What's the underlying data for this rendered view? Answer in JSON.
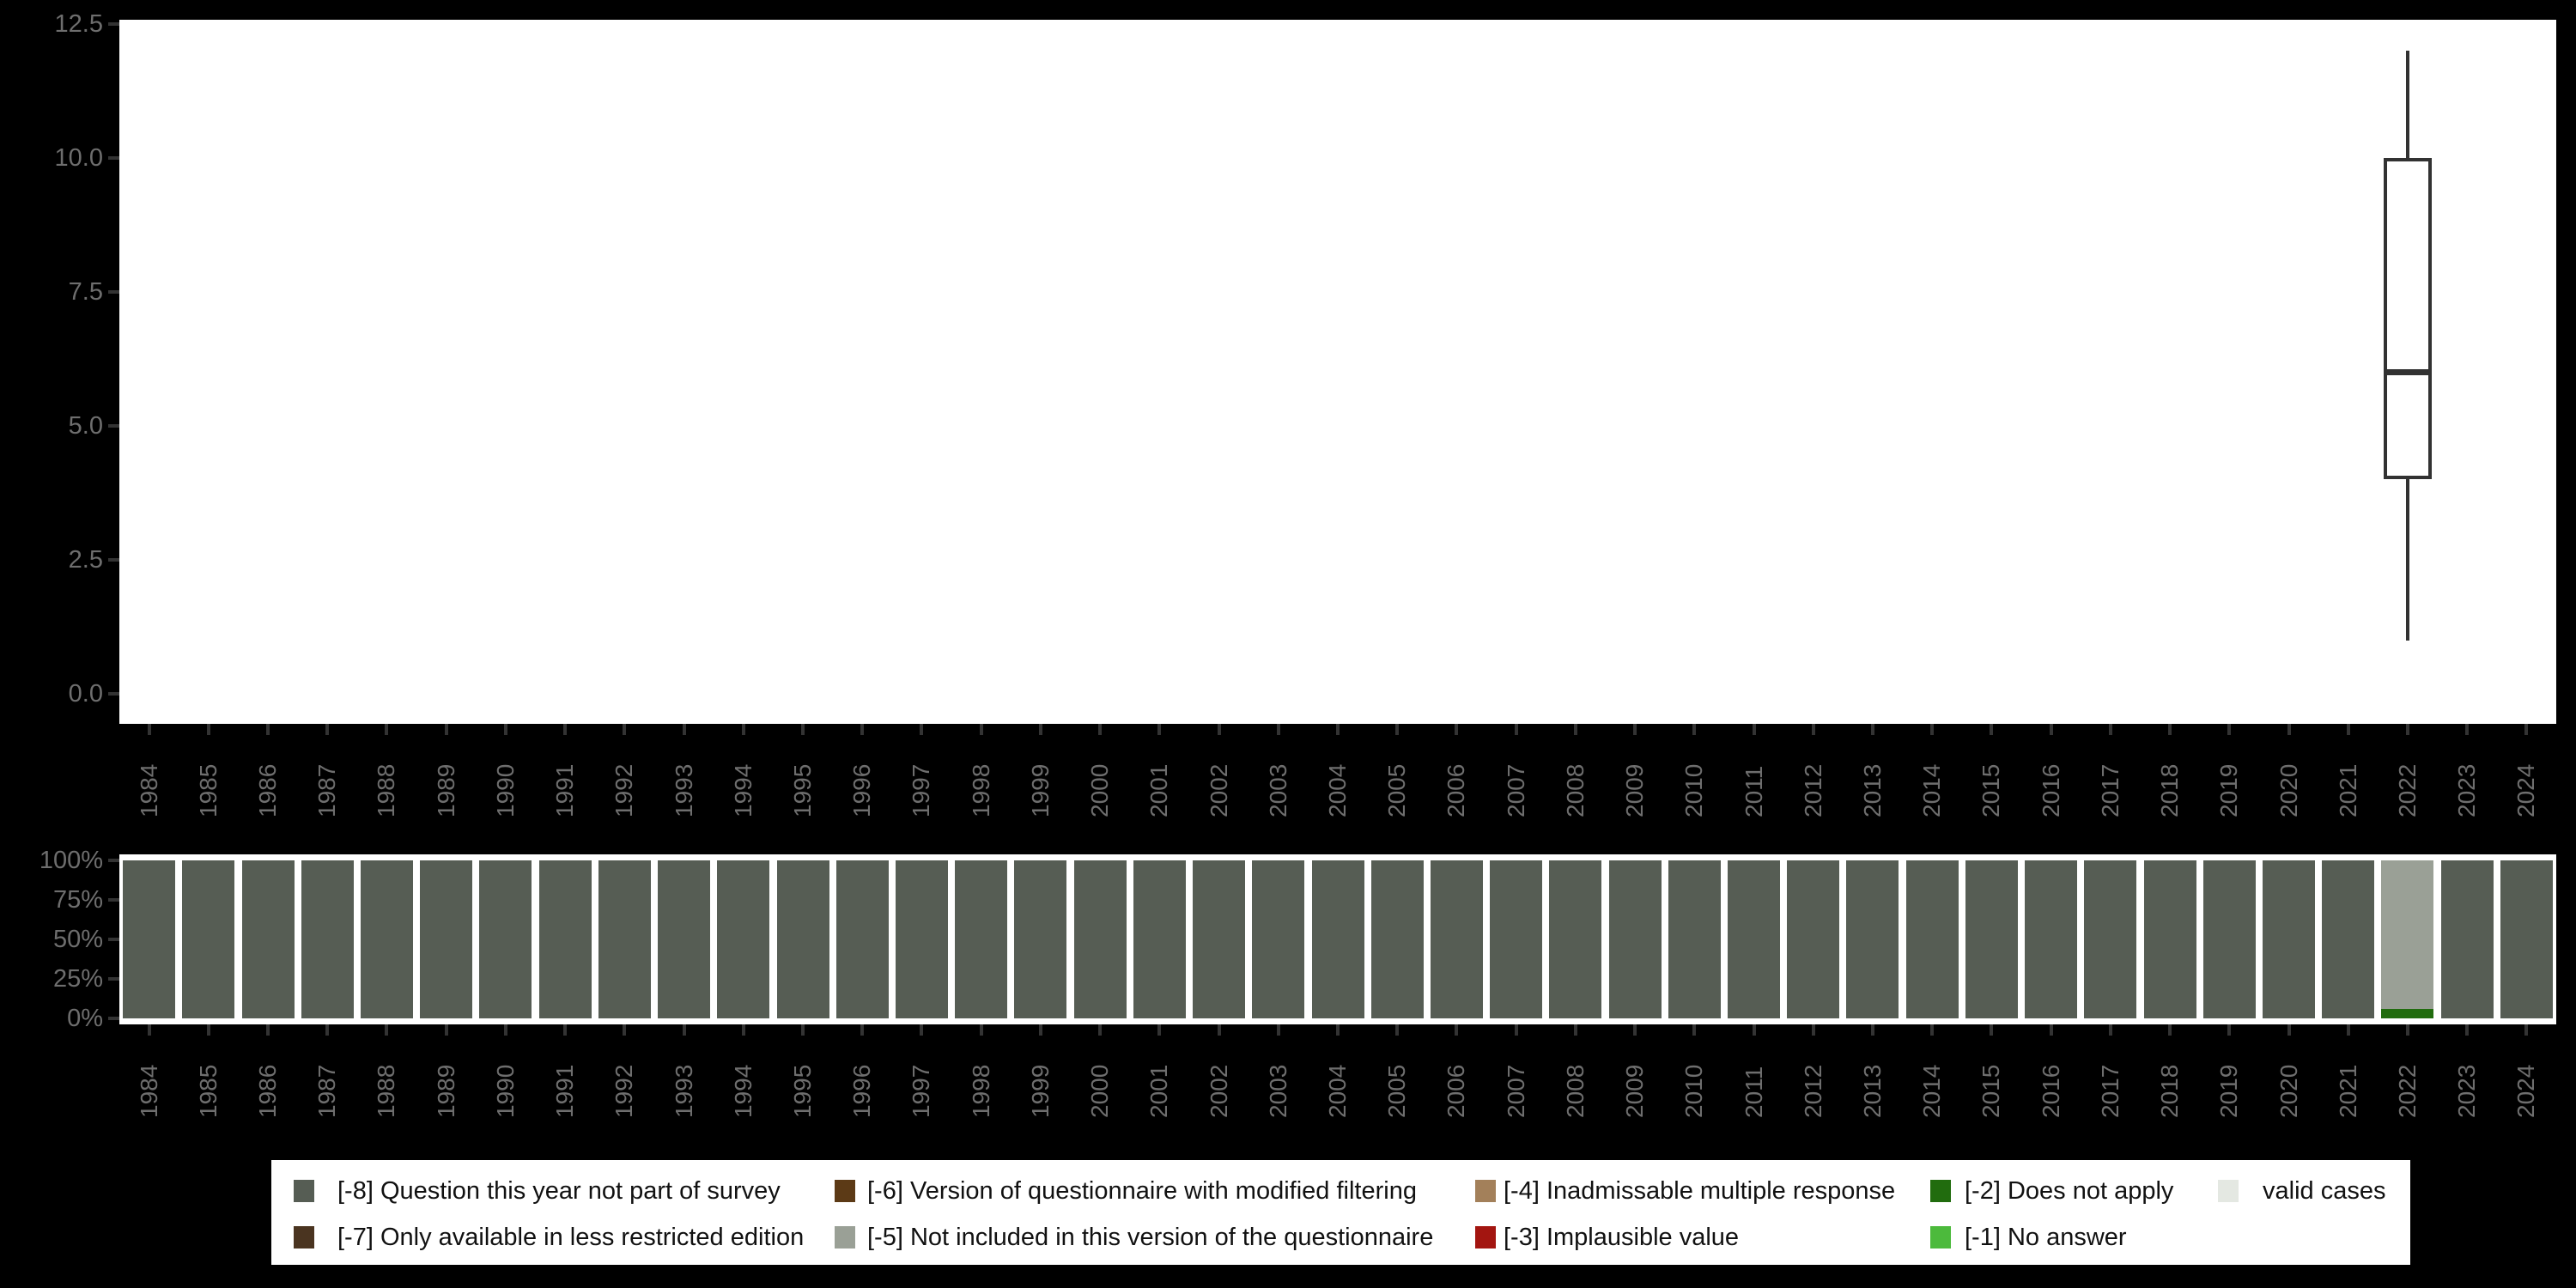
{
  "figure": {
    "background_color": "#000000",
    "panel_color": "#ffffff",
    "axis_text_color": "#6e6e6e",
    "tick_color": "#333333",
    "box_stroke_color": "#323232"
  },
  "chart_data": [
    {
      "type": "boxplot",
      "title": "",
      "xlabel": "",
      "ylabel": "",
      "ylim": [
        0,
        12.5
      ],
      "ytick_labels": [
        "0.0",
        "2.5",
        "5.0",
        "7.5",
        "10.0",
        "12.5"
      ],
      "grid": false,
      "categories": [
        "1984",
        "1985",
        "1986",
        "1987",
        "1988",
        "1989",
        "1990",
        "1991",
        "1992",
        "1993",
        "1994",
        "1995",
        "1996",
        "1997",
        "1998",
        "1999",
        "2000",
        "2001",
        "2002",
        "2003",
        "2004",
        "2005",
        "2006",
        "2007",
        "2008",
        "2009",
        "2010",
        "2011",
        "2012",
        "2013",
        "2014",
        "2015",
        "2016",
        "2017",
        "2018",
        "2019",
        "2020",
        "2021",
        "2022",
        "2023",
        "2024"
      ],
      "boxes": [
        {
          "category": "2022",
          "min": 1,
          "q1": 4,
          "median": 6,
          "q3": 10,
          "max": 12
        }
      ]
    },
    {
      "type": "bar",
      "subtype": "stacked-percent",
      "title": "",
      "xlabel": "",
      "ylabel": "",
      "ytick_labels": [
        "0%",
        "25%",
        "50%",
        "75%",
        "100%"
      ],
      "ylim_percent": [
        0,
        100
      ],
      "legend_position": "bottom",
      "categories": [
        "1984",
        "1985",
        "1986",
        "1987",
        "1988",
        "1989",
        "1990",
        "1991",
        "1992",
        "1993",
        "1994",
        "1995",
        "1996",
        "1997",
        "1998",
        "1999",
        "2000",
        "2001",
        "2002",
        "2003",
        "2004",
        "2005",
        "2006",
        "2007",
        "2008",
        "2009",
        "2010",
        "2011",
        "2012",
        "2013",
        "2014",
        "2015",
        "2016",
        "2017",
        "2018",
        "2019",
        "2020",
        "2021",
        "2022",
        "2023",
        "2024"
      ],
      "default_segments": [
        {
          "legend": "[-8] Question this year not part of survey",
          "pct": 100
        }
      ],
      "exceptions": {
        "2022": [
          {
            "legend": "[-5] Not included in this version of the questionnaire",
            "pct": 94
          },
          {
            "legend": "[-2] Does not apply",
            "pct": 6
          }
        ]
      }
    }
  ],
  "legend": {
    "items": [
      {
        "label": "[-8] Question this year not part of survey",
        "color": "#565d54",
        "row": 0,
        "col": 0
      },
      {
        "label": "[-7] Only available in less restricted edition",
        "color": "#4a3420",
        "row": 1,
        "col": 0
      },
      {
        "label": "[-6] Version of questionnaire with modified filtering",
        "color": "#5c3a16",
        "row": 0,
        "col": 1
      },
      {
        "label": "[-5] Not included in this version of the questionnaire",
        "color": "#9aa096",
        "row": 1,
        "col": 1
      },
      {
        "label": "[-4] Inadmissable multiple response",
        "color": "#a3805a",
        "row": 0,
        "col": 2
      },
      {
        "label": "[-3] Implausible value",
        "color": "#a31510",
        "row": 1,
        "col": 2
      },
      {
        "label": "[-2] Does not apply",
        "color": "#216c0e",
        "row": 0,
        "col": 3
      },
      {
        "label": "[-1] No answer",
        "color": "#4cba3c",
        "row": 1,
        "col": 3
      },
      {
        "label": "valid cases",
        "color": "#e4e8e2",
        "row": 0,
        "col": 4
      }
    ]
  }
}
